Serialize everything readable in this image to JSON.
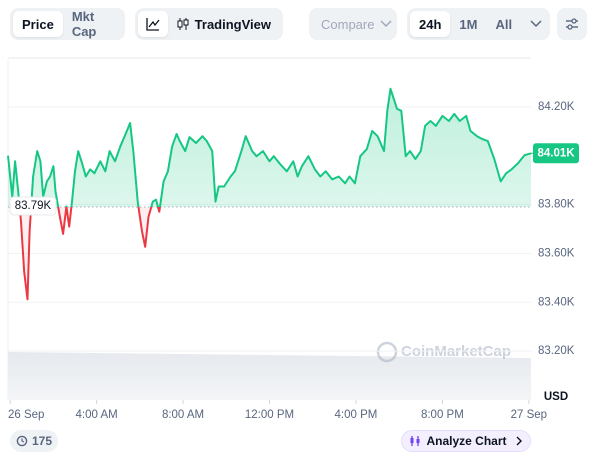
{
  "toolbar": {
    "tabs": [
      "Price",
      "Mkt Cap"
    ],
    "tradingview": "TradingView",
    "compare": "Compare",
    "ranges": [
      "24h",
      "1M",
      "All"
    ]
  },
  "chart_data": {
    "type": "line",
    "currency": "USD",
    "watermark": "CoinMarketCap",
    "x": [
      -0.1,
      0.1,
      0.23,
      0.37,
      0.5,
      0.65,
      0.8,
      0.9,
      1.06,
      1.25,
      1.4,
      1.53,
      1.7,
      1.85,
      2.0,
      2.1,
      2.3,
      2.45,
      2.6,
      2.73,
      2.87,
      3.0,
      3.15,
      3.33,
      3.5,
      3.7,
      3.9,
      4.17,
      4.4,
      4.6,
      4.85,
      5.1,
      5.3,
      5.55,
      5.7,
      5.9,
      6.1,
      6.25,
      6.4,
      6.6,
      6.75,
      6.9,
      7.1,
      7.3,
      7.5,
      7.7,
      7.85,
      8.1,
      8.3,
      8.6,
      8.9,
      9.1,
      9.35,
      9.5,
      9.65,
      9.9,
      10.2,
      10.4,
      10.7,
      10.9,
      11.2,
      11.4,
      11.7,
      12.0,
      12.2,
      12.5,
      12.8,
      13.1,
      13.3,
      13.5,
      13.8,
      14.1,
      14.35,
      14.6,
      14.9,
      15.2,
      15.5,
      15.7,
      15.95,
      16.2,
      16.5,
      16.75,
      17.0,
      17.3,
      17.45,
      17.6,
      17.9,
      18.1,
      18.3,
      18.5,
      18.75,
      19.0,
      19.2,
      19.45,
      19.7,
      20.0,
      20.3,
      20.55,
      20.8,
      21.1,
      21.3,
      21.6,
      21.85,
      22.1,
      22.4,
      22.7,
      22.95,
      23.2,
      23.5,
      23.8,
      24.1
    ],
    "values": [
      84000,
      83833,
      83977,
      83854,
      83730,
      83524,
      83412,
      83690,
      83915,
      84019,
      83977,
      83833,
      83895,
      83915,
      83957,
      83854,
      83750,
      83680,
      83792,
      83710,
      83820,
      83936,
      84019,
      83969,
      83915,
      83944,
      83928,
      83977,
      83936,
      84019,
      83977,
      84039,
      84080,
      84134,
      84019,
      83812,
      83690,
      83627,
      83750,
      83812,
      83820,
      83771,
      83895,
      83936,
      84039,
      84089,
      84060,
      84019,
      84076,
      84052,
      84080,
      84060,
      84019,
      83812,
      83874,
      83874,
      83915,
      83936,
      84019,
      84080,
      84019,
      83998,
      84019,
      83977,
      83998,
      83965,
      83936,
      83977,
      83915,
      83957,
      83998,
      83944,
      83915,
      83936,
      83903,
      83915,
      83887,
      83915,
      83887,
      83998,
      84027,
      84101,
      84080,
      84019,
      84184,
      84274,
      84192,
      84184,
      83998,
      84019,
      83986,
      84019,
      84122,
      84142,
      84122,
      84163,
      84142,
      84171,
      84142,
      84163,
      84101,
      84080,
      84068,
      84060,
      83986,
      83895,
      83928,
      83944,
      83969,
      84002,
      84010
    ],
    "up_color": "#16c784",
    "down_color": "#ea3943",
    "baseline": {
      "value": 83790,
      "label": "83.79K"
    },
    "current": {
      "value": 84010,
      "label": "84.01K"
    },
    "xlim": [
      -0.1,
      24.1
    ],
    "xticks": [
      {
        "value": 0,
        "label": "26 Sep"
      },
      {
        "value": 4,
        "label": "4:00 AM"
      },
      {
        "value": 8,
        "label": "8:00 AM"
      },
      {
        "value": 12,
        "label": "12:00 PM"
      },
      {
        "value": 16,
        "label": "4:00 PM"
      },
      {
        "value": 20,
        "label": "8:00 PM"
      },
      {
        "value": 24,
        "label": "27 Sep"
      }
    ],
    "ylim": [
      83000,
      84400
    ],
    "yticks": [
      {
        "value": 84200,
        "label": "84.20K"
      },
      {
        "value": 83800,
        "label": "83.80K"
      },
      {
        "value": 83600,
        "label": "83.60K"
      },
      {
        "value": 83400,
        "label": "83.40K"
      },
      {
        "value": 83200,
        "label": "83.20K"
      }
    ],
    "grid": true
  },
  "footer": {
    "events": "175",
    "analyze": "Analyze Chart"
  }
}
